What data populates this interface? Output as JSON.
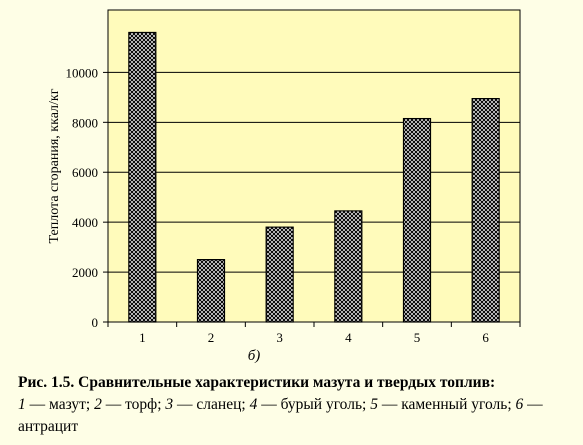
{
  "chart_data": {
    "type": "bar",
    "categories": [
      "1",
      "2",
      "3",
      "4",
      "5",
      "6"
    ],
    "values": [
      11600,
      2500,
      3800,
      4450,
      8150,
      8950
    ],
    "ylabel": "Теплота сгорания, ккал/кг",
    "xlabel": "б)",
    "ylim": [
      0,
      12500
    ],
    "yticks": [
      0,
      2000,
      4000,
      6000,
      8000,
      10000
    ],
    "grid": true
  },
  "colors": {
    "background": "#fefee6",
    "plot_background": "#fffbbb",
    "bar_fill": "crosshatch-black-white"
  },
  "caption": {
    "title": "Рис. 1.5. Сравнительные характеристики мазута и твердых топлив:",
    "items": [
      {
        "num": "1",
        "sep": " — ",
        "label": "мазут",
        "end": "; "
      },
      {
        "num": "2",
        "sep": " — ",
        "label": "торф",
        "end": "; "
      },
      {
        "num": "3",
        "sep": " — ",
        "label": "сланец",
        "end": "; "
      },
      {
        "num": "4",
        "sep": " — ",
        "label": "бурый уголь",
        "end": "; "
      },
      {
        "num": "5",
        "sep": " — ",
        "label": "каменный уголь",
        "end": "; "
      },
      {
        "num": "6",
        "sep": " — ",
        "label": "антрацит",
        "end": ""
      }
    ]
  }
}
